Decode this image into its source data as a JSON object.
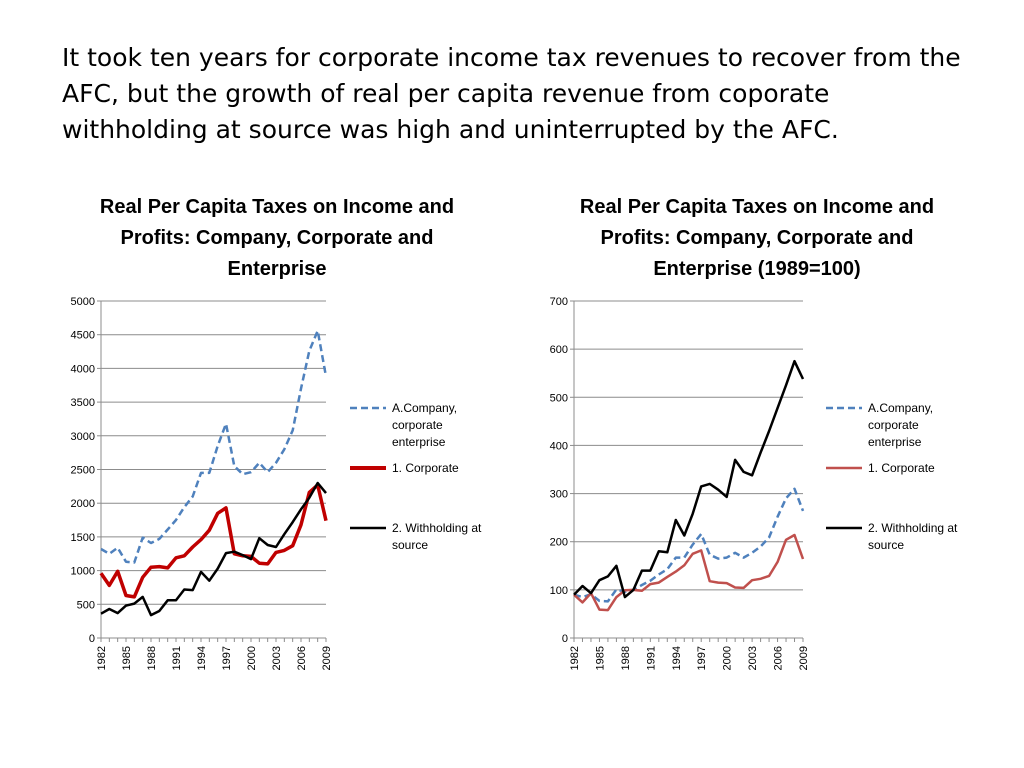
{
  "slide": {
    "title": "It took ten years for corporate income tax revenues to recover from the AFC, but the growth of real per capita revenue from coporate withholding at source was high and uninterrupted by the AFC."
  },
  "chart_data": [
    {
      "type": "line",
      "title": "Real Per Capita Taxes on Income and Profits:  Company, Corporate and Enterprise",
      "xlabel": "",
      "ylabel": "",
      "x": [
        1982,
        1983,
        1984,
        1985,
        1986,
        1987,
        1988,
        1989,
        1990,
        1991,
        1992,
        1993,
        1994,
        1995,
        1996,
        1997,
        1998,
        1999,
        2000,
        2001,
        2002,
        2003,
        2004,
        2005,
        2006,
        2007,
        2008,
        2009
      ],
      "x_tick_labels": [
        "1982",
        "1985",
        "1988",
        "1991",
        "1994",
        "1997",
        "2000",
        "2003",
        "2006",
        "2009"
      ],
      "ylim": [
        0,
        5000
      ],
      "y_ticks": [
        0,
        500,
        1000,
        1500,
        2000,
        2500,
        3000,
        3500,
        4000,
        4500,
        5000
      ],
      "grid": true,
      "legend_position": "right",
      "series": [
        {
          "name": "A.Company, corporate enterprise",
          "style": "dashed",
          "color": "#4f81bd",
          "values": [
            1320,
            1250,
            1340,
            1130,
            1120,
            1490,
            1410,
            1470,
            1610,
            1750,
            1940,
            2100,
            2450,
            2450,
            2850,
            3180,
            2550,
            2430,
            2460,
            2600,
            2460,
            2600,
            2800,
            3080,
            3700,
            4260,
            4560,
            3880
          ]
        },
        {
          "name": "1. Corporate",
          "style": "solid-thick",
          "color": "#c00000",
          "values": [
            960,
            780,
            990,
            630,
            610,
            900,
            1050,
            1060,
            1040,
            1190,
            1220,
            1350,
            1460,
            1600,
            1850,
            1930,
            1250,
            1220,
            1210,
            1110,
            1100,
            1270,
            1300,
            1370,
            1680,
            2160,
            2270,
            1740
          ]
        },
        {
          "name": "2. Withholding at source",
          "style": "solid",
          "color": "#000000",
          "values": [
            360,
            430,
            370,
            480,
            510,
            610,
            340,
            400,
            560,
            560,
            720,
            710,
            980,
            850,
            1030,
            1260,
            1280,
            1230,
            1170,
            1480,
            1380,
            1350,
            1540,
            1720,
            1910,
            2080,
            2300,
            2150
          ]
        }
      ]
    },
    {
      "type": "line",
      "title": "Real Per Capita Taxes on Income and Profits: Company, Corporate and Enterprise (1989=100)",
      "xlabel": "",
      "ylabel": "",
      "x": [
        1982,
        1983,
        1984,
        1985,
        1986,
        1987,
        1988,
        1989,
        1990,
        1991,
        1992,
        1993,
        1994,
        1995,
        1996,
        1997,
        1998,
        1999,
        2000,
        2001,
        2002,
        2003,
        2004,
        2005,
        2006,
        2007,
        2008,
        2009
      ],
      "x_tick_labels": [
        "1982",
        "1985",
        "1988",
        "1991",
        "1994",
        "1997",
        "2000",
        "2003",
        "2006",
        "2009"
      ],
      "ylim": [
        0,
        700
      ],
      "y_ticks": [
        0,
        100,
        200,
        300,
        400,
        500,
        600,
        700
      ],
      "grid": true,
      "legend_position": "right",
      "series": [
        {
          "name": "A.Company, corporate enterprise",
          "style": "dashed",
          "color": "#4f81bd",
          "values": [
            90,
            85,
            91,
            77,
            76,
            101,
            96,
            100,
            110,
            119,
            132,
            143,
            167,
            167,
            194,
            216,
            173,
            165,
            167,
            177,
            167,
            177,
            190,
            209,
            252,
            290,
            310,
            264
          ]
        },
        {
          "name": "1. Corporate",
          "style": "solid",
          "color": "#c0504d",
          "values": [
            90,
            74,
            93,
            59,
            58,
            85,
            99,
            100,
            98,
            112,
            115,
            127,
            138,
            151,
            175,
            182,
            118,
            115,
            114,
            105,
            104,
            120,
            123,
            129,
            158,
            204,
            214,
            164
          ]
        },
        {
          "name": "2. Withholding at source",
          "style": "solid",
          "color": "#000000",
          "values": [
            90,
            108,
            93,
            120,
            128,
            150,
            85,
            100,
            140,
            140,
            180,
            178,
            245,
            213,
            258,
            315,
            320,
            308,
            293,
            370,
            345,
            338,
            385,
            430,
            478,
            525,
            575,
            538
          ]
        }
      ]
    }
  ]
}
